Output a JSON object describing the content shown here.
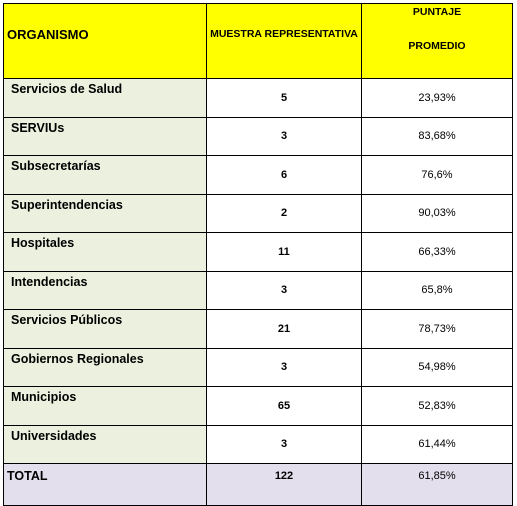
{
  "header": {
    "organismo": "ORGANISMO",
    "muestra": "MUESTRA REPRESENTATIVA",
    "puntaje_line1": "PUNTAJE",
    "puntaje_line2": "PROMEDIO"
  },
  "rows": [
    {
      "organismo": "Servicios de Salud",
      "muestra": "5",
      "puntaje": "23,93%"
    },
    {
      "organismo": "SERVIUs",
      "muestra": "3",
      "puntaje": "83,68%"
    },
    {
      "organismo": "Subsecretarías",
      "muestra": "6",
      "puntaje": "76,6%"
    },
    {
      "organismo": "Superintendencias",
      "muestra": "2",
      "puntaje": "90,03%"
    },
    {
      "organismo": "Hospitales",
      "muestra": "11",
      "puntaje": "66,33%"
    },
    {
      "organismo": "Intendencias",
      "muestra": "3",
      "puntaje": "65,8%"
    },
    {
      "organismo": "Servicios Públicos",
      "muestra": "21",
      "puntaje": "78,73%"
    },
    {
      "organismo": "Gobiernos Regionales",
      "muestra": "3",
      "puntaje": "54,98%"
    },
    {
      "organismo": "Municipios",
      "muestra": "65",
      "puntaje": "52,83%"
    },
    {
      "organismo": "Universidades",
      "muestra": "3",
      "puntaje": "61,44%"
    }
  ],
  "total": {
    "label": "TOTAL",
    "muestra": "122",
    "puntaje": "61,85%"
  },
  "colors": {
    "header_bg": "#ffff00",
    "name_col_bg": "#ebf1de",
    "total_row_bg": "#e4dfec",
    "border": "#000000"
  }
}
